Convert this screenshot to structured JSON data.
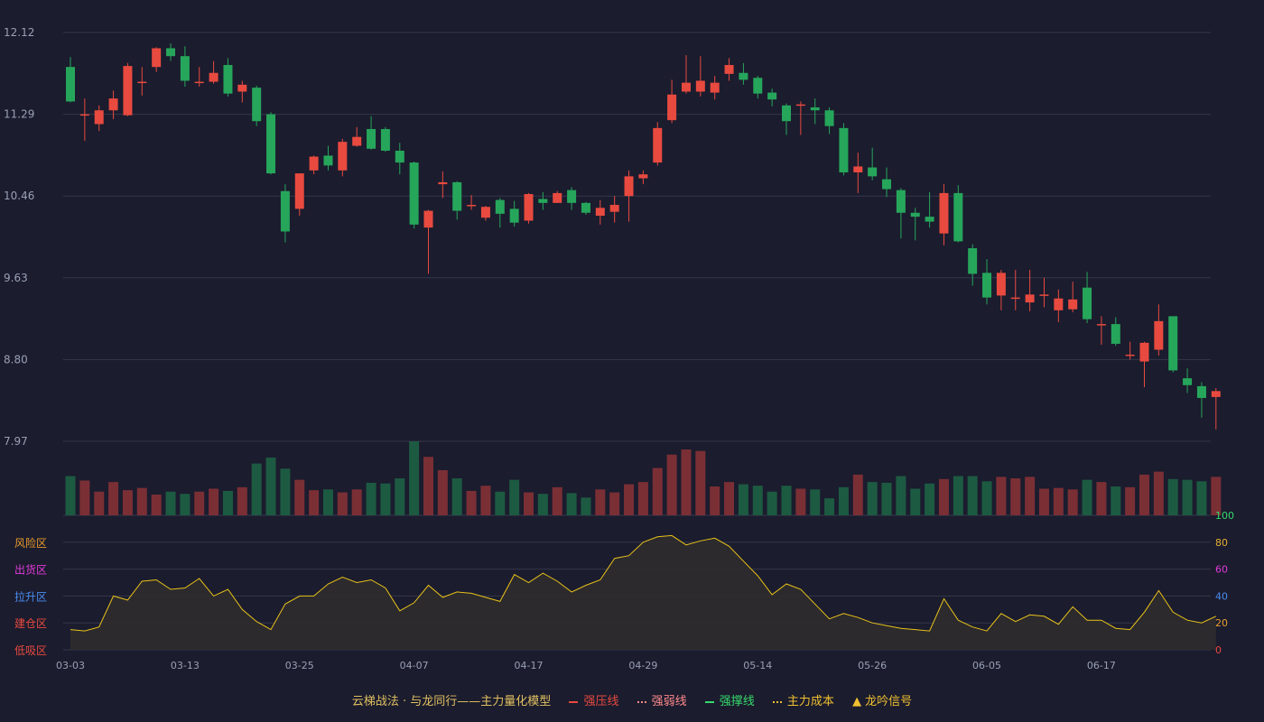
{
  "colors": {
    "background": "#1b1c2e",
    "grid": "#35374a",
    "axis_text": "#9aa0b4",
    "up": "#e84a3f",
    "down": "#26a65b",
    "vol_up": "#7a2f35",
    "vol_down": "#1d5a42",
    "indicator_line": "#e8c21a",
    "indicator_fill": "#2f2c2c",
    "zone_risk": "#e89a2a",
    "zone_sell": "#e03ad8",
    "zone_rise": "#4a8cf0",
    "zone_build": "#e84a3f",
    "zone_low": "#e84a3f",
    "tick_100": "#36d96a",
    "tick_80": "#e8b030",
    "tick_60": "#e03ad8",
    "tick_40": "#4a8cf0",
    "tick_20": "#e8a030",
    "tick_0": "#e84a3f"
  },
  "chart_data": [
    {
      "type": "candlestick",
      "y_ticks": [
        "12.12",
        "11.29",
        "10.46",
        "9.63",
        "8.80",
        "7.97"
      ],
      "ylim": [
        7.97,
        12.12
      ],
      "x_tick_labels": [
        {
          "index": 0,
          "label": "03-03"
        },
        {
          "index": 8,
          "label": "03-13"
        },
        {
          "index": 16,
          "label": "03-25"
        },
        {
          "index": 24,
          "label": "04-07"
        },
        {
          "index": 32,
          "label": "04-17"
        },
        {
          "index": 40,
          "label": "04-29"
        },
        {
          "index": 48,
          "label": "05-14"
        },
        {
          "index": 56,
          "label": "05-26"
        },
        {
          "index": 64,
          "label": "06-05"
        },
        {
          "index": 72,
          "label": "06-17"
        }
      ],
      "candles": [
        [
          11.77,
          11.42,
          11.87,
          11.41
        ],
        [
          11.29,
          11.29,
          11.45,
          11.02
        ],
        [
          11.19,
          11.33,
          11.38,
          11.12
        ],
        [
          11.33,
          11.45,
          11.53,
          11.24
        ],
        [
          11.28,
          11.78,
          11.81,
          11.27
        ],
        [
          11.62,
          11.62,
          11.77,
          11.48
        ],
        [
          11.77,
          11.96,
          11.97,
          11.72
        ],
        [
          11.96,
          11.88,
          12.01,
          11.83
        ],
        [
          11.88,
          11.63,
          11.98,
          11.57
        ],
        [
          11.62,
          11.62,
          11.77,
          11.57
        ],
        [
          11.62,
          11.71,
          11.83,
          11.6
        ],
        [
          11.79,
          11.5,
          11.86,
          11.47
        ],
        [
          11.52,
          11.59,
          11.63,
          11.41
        ],
        [
          11.56,
          11.22,
          11.58,
          11.17
        ],
        [
          11.29,
          10.69,
          11.31,
          10.68
        ],
        [
          10.51,
          10.1,
          10.58,
          9.99
        ],
        [
          10.33,
          10.69,
          10.69,
          10.26
        ],
        [
          10.72,
          10.86,
          10.87,
          10.68
        ],
        [
          10.87,
          10.77,
          10.97,
          10.72
        ],
        [
          10.72,
          11.01,
          11.04,
          10.66
        ],
        [
          10.97,
          11.06,
          11.16,
          10.96
        ],
        [
          11.14,
          10.94,
          11.27,
          10.93
        ],
        [
          11.14,
          10.92,
          11.16,
          10.91
        ],
        [
          10.92,
          10.8,
          11.0,
          10.68
        ],
        [
          10.8,
          10.17,
          10.81,
          10.13
        ],
        [
          10.14,
          10.31,
          10.32,
          9.67
        ],
        [
          10.58,
          10.6,
          10.71,
          10.44
        ],
        [
          10.6,
          10.31,
          10.61,
          10.22
        ],
        [
          10.37,
          10.37,
          10.47,
          10.32
        ],
        [
          10.24,
          10.35,
          10.36,
          10.21
        ],
        [
          10.42,
          10.28,
          10.44,
          10.14
        ],
        [
          10.33,
          10.19,
          10.41,
          10.15
        ],
        [
          10.21,
          10.48,
          10.49,
          10.18
        ],
        [
          10.43,
          10.39,
          10.5,
          10.32
        ],
        [
          10.39,
          10.49,
          10.51,
          10.39
        ],
        [
          10.52,
          10.39,
          10.55,
          10.32
        ],
        [
          10.39,
          10.29,
          10.4,
          10.27
        ],
        [
          10.26,
          10.34,
          10.42,
          10.17
        ],
        [
          10.3,
          10.37,
          10.46,
          10.19
        ],
        [
          10.46,
          10.66,
          10.72,
          10.2
        ],
        [
          10.64,
          10.68,
          10.72,
          10.58
        ],
        [
          10.8,
          11.15,
          11.21,
          10.77
        ],
        [
          11.23,
          11.49,
          11.64,
          11.2
        ],
        [
          11.52,
          11.61,
          11.89,
          11.5
        ],
        [
          11.52,
          11.63,
          11.88,
          11.47
        ],
        [
          11.51,
          11.61,
          11.68,
          11.44
        ],
        [
          11.7,
          11.79,
          11.86,
          11.63
        ],
        [
          11.71,
          11.64,
          11.81,
          11.59
        ],
        [
          11.66,
          11.5,
          11.68,
          11.45
        ],
        [
          11.51,
          11.44,
          11.55,
          11.37
        ],
        [
          11.38,
          11.22,
          11.4,
          11.08
        ],
        [
          11.39,
          11.39,
          11.42,
          11.08
        ],
        [
          11.36,
          11.33,
          11.45,
          11.19
        ],
        [
          11.33,
          11.17,
          11.36,
          11.09
        ],
        [
          11.15,
          10.7,
          11.2,
          10.67
        ],
        [
          10.7,
          10.76,
          10.9,
          10.49
        ],
        [
          10.75,
          10.66,
          10.95,
          10.62
        ],
        [
          10.63,
          10.53,
          10.75,
          10.45
        ],
        [
          10.52,
          10.29,
          10.54,
          10.03
        ],
        [
          10.29,
          10.25,
          10.34,
          10.01
        ],
        [
          10.25,
          10.2,
          10.5,
          10.14
        ],
        [
          10.08,
          10.49,
          10.58,
          9.96
        ],
        [
          10.49,
          10.0,
          10.57,
          9.99
        ],
        [
          9.93,
          9.67,
          9.97,
          9.55
        ],
        [
          9.68,
          9.43,
          9.82,
          9.36
        ],
        [
          9.45,
          9.68,
          9.71,
          9.3
        ],
        [
          9.43,
          9.43,
          9.71,
          9.3
        ],
        [
          9.38,
          9.46,
          9.71,
          9.29
        ],
        [
          9.46,
          9.46,
          9.63,
          9.33
        ],
        [
          9.3,
          9.42,
          9.51,
          9.18
        ],
        [
          9.31,
          9.41,
          9.59,
          9.28
        ],
        [
          9.53,
          9.21,
          9.69,
          9.17
        ],
        [
          9.16,
          9.16,
          9.24,
          8.95
        ],
        [
          9.16,
          8.96,
          9.23,
          8.94
        ],
        [
          8.85,
          8.85,
          8.98,
          8.8
        ],
        [
          8.78,
          8.97,
          8.98,
          8.52
        ],
        [
          8.9,
          9.19,
          9.36,
          8.84
        ],
        [
          9.24,
          8.69,
          9.24,
          8.67
        ],
        [
          8.61,
          8.54,
          8.71,
          8.46
        ],
        [
          8.53,
          8.41,
          8.57,
          8.21
        ],
        [
          8.42,
          8.48,
          8.51,
          8.09
        ]
      ]
    },
    {
      "type": "bar",
      "name": "volume",
      "values": [
        0.53,
        0.47,
        0.32,
        0.45,
        0.34,
        0.37,
        0.28,
        0.32,
        0.29,
        0.32,
        0.36,
        0.33,
        0.38,
        0.7,
        0.78,
        0.63,
        0.48,
        0.34,
        0.35,
        0.31,
        0.35,
        0.44,
        0.43,
        0.5,
        1.0,
        0.79,
        0.61,
        0.5,
        0.33,
        0.4,
        0.32,
        0.48,
        0.31,
        0.29,
        0.38,
        0.3,
        0.24,
        0.35,
        0.31,
        0.42,
        0.45,
        0.64,
        0.82,
        0.89,
        0.87,
        0.39,
        0.45,
        0.42,
        0.4,
        0.32,
        0.4,
        0.36,
        0.35,
        0.23,
        0.38,
        0.55,
        0.45,
        0.44,
        0.53,
        0.36,
        0.43,
        0.49,
        0.53,
        0.53,
        0.46,
        0.52,
        0.5,
        0.52,
        0.36,
        0.37,
        0.35,
        0.48,
        0.45,
        0.39,
        0.38,
        0.55,
        0.59,
        0.49,
        0.48,
        0.46,
        0.52
      ]
    },
    {
      "type": "area",
      "name": "indicator",
      "ylim": [
        0,
        100
      ],
      "y_ticks": [
        "100",
        "80",
        "60",
        "40",
        "20",
        "0"
      ],
      "zones": [
        "风险区",
        "出货区",
        "拉升区",
        "建仓区",
        "低吸区"
      ],
      "values": [
        15,
        14,
        17,
        40,
        37,
        51,
        52,
        45,
        46,
        53,
        40,
        45,
        30,
        21,
        15,
        34,
        40,
        40,
        49,
        54,
        50,
        52,
        46,
        29,
        35,
        48,
        39,
        43,
        42,
        39,
        36,
        56,
        50,
        57,
        51,
        43,
        48,
        52,
        68,
        70,
        80,
        84,
        85,
        78,
        81,
        83,
        77,
        66,
        55,
        41,
        49,
        45,
        34,
        23,
        27,
        24,
        20,
        18,
        16,
        15,
        14,
        38,
        22,
        17,
        14,
        27,
        21,
        26,
        25,
        19,
        32,
        22,
        22,
        16,
        15,
        28,
        44,
        28,
        22,
        20,
        25
      ]
    }
  ],
  "legend": {
    "title": "云梯战法 · 与龙同行——主力量化模型",
    "items": [
      {
        "label": "强压线",
        "color": "#e84a3f",
        "style": "solid"
      },
      {
        "label": "强弱线",
        "color": "#ff8a8a",
        "style": "dotted"
      },
      {
        "label": "强撑线",
        "color": "#36d96a",
        "style": "solid"
      },
      {
        "label": "主力成本",
        "color": "#f0c030",
        "style": "dotted"
      },
      {
        "label": "龙吟信号",
        "color": "#f0c030",
        "style": "triangle"
      }
    ]
  }
}
